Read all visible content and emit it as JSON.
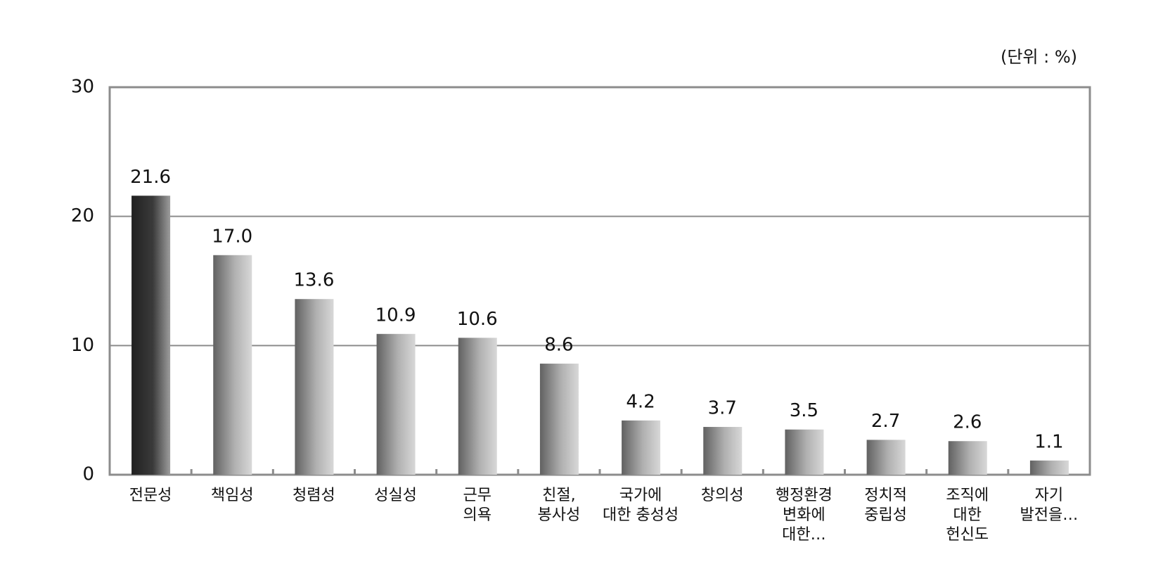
{
  "chart_data": {
    "type": "bar",
    "unit_label": "(단위 : %)",
    "categories": [
      "전문성",
      "책임성",
      "청렴성",
      "성실성",
      "근무\n의욕",
      "친절,\n봉사성",
      "국가에\n대한 충성성",
      "창의성",
      "행정환경\n변화에\n대한…",
      "정치적\n중립성",
      "조직에\n대한\n헌신도",
      "자기\n발전을…"
    ],
    "values": [
      21.6,
      17.0,
      13.6,
      10.9,
      10.6,
      8.6,
      4.2,
      3.7,
      3.5,
      2.7,
      2.6,
      1.1
    ],
    "value_labels": [
      "21.6",
      "17.0",
      "13.6",
      "10.9",
      "10.6",
      "8.6",
      "4.2",
      "3.7",
      "3.5",
      "2.7",
      "2.6",
      "1.1"
    ],
    "colors": [
      "#3a3a3a",
      "#b0b0b0",
      "#b0b0b0",
      "#b0b0b0",
      "#b0b0b0",
      "#b0b0b0",
      "#b0b0b0",
      "#b0b0b0",
      "#b0b0b0",
      "#b0b0b0",
      "#b0b0b0",
      "#b0b0b0"
    ],
    "ylim": [
      0,
      30
    ],
    "yticks": [
      0,
      10,
      20,
      30
    ],
    "grid": true
  }
}
